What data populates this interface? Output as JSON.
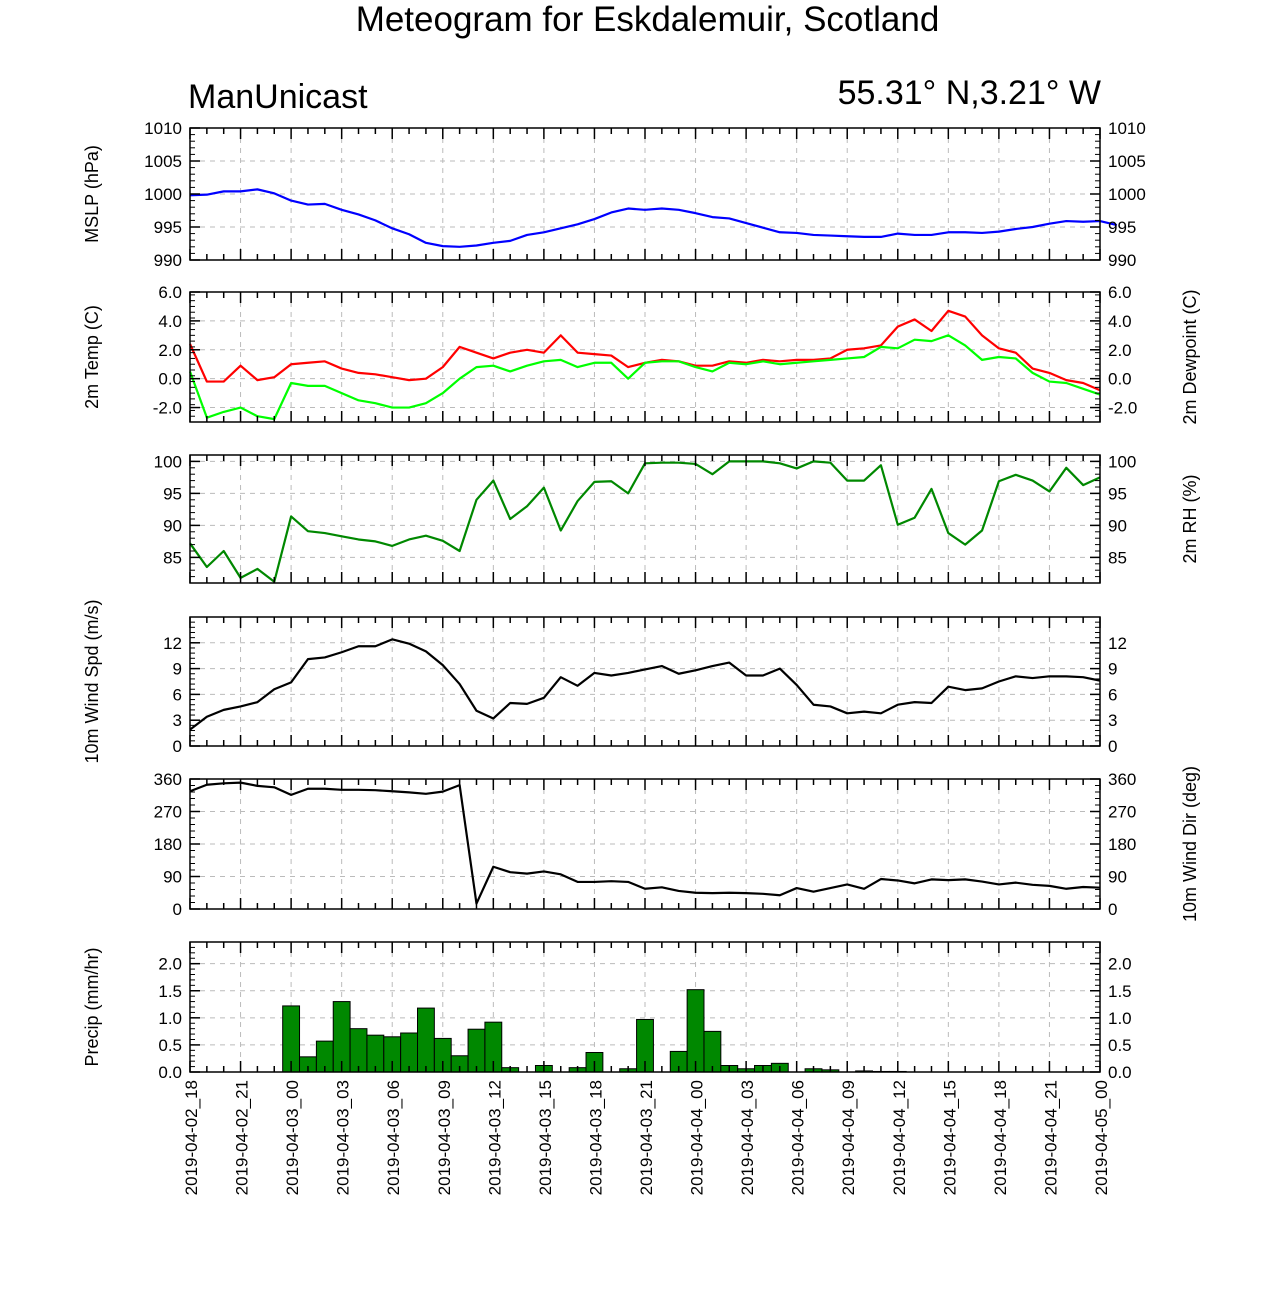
{
  "header": {
    "title": "Meteogram for Eskdalemuir, Scotland",
    "model": "ManUnicast",
    "coords": "55.31° N,3.21° W"
  },
  "chart_data": {
    "type": "line",
    "x_tick_labels": [
      "2019-04-02_18",
      "2019-04-02_21",
      "2019-04-03_00",
      "2019-04-03_03",
      "2019-04-03_06",
      "2019-04-03_09",
      "2019-04-03_12",
      "2019-04-03_15",
      "2019-04-03_18",
      "2019-04-03_21",
      "2019-04-04_00",
      "2019-04-04_03",
      "2019-04-04_06",
      "2019-04-04_09",
      "2019-04-04_12",
      "2019-04-04_15",
      "2019-04-04_18",
      "2019-04-04_21",
      "2019-04-05_00"
    ],
    "x_hours_range": [
      0,
      54
    ],
    "panels": [
      {
        "id": "mslp",
        "ylabel_left": "MSLP (hPa)",
        "ylabel_right": "",
        "ylim": [
          990,
          1010
        ],
        "yticks": [
          990,
          995,
          1000,
          1005,
          1010
        ],
        "ytick_labels": [
          "990",
          "995",
          "1000",
          "1005",
          "1010"
        ],
        "type": "line",
        "series": [
          {
            "color": "#0000ff",
            "values": [
              999.8,
              999.9,
              1000.4,
              1000.4,
              1000.7,
              1000.1,
              999.0,
              998.4,
              998.5,
              997.6,
              996.9,
              996.0,
              994.8,
              993.9,
              992.6,
              992.1,
              992.0,
              992.2,
              992.6,
              992.9,
              993.8,
              994.2,
              994.8,
              995.4,
              996.2,
              997.2,
              997.8,
              997.6,
              997.8,
              997.6,
              997.1,
              996.5,
              996.3,
              995.6,
              994.9,
              994.2,
              994.1,
              993.8,
              993.7,
              993.6,
              993.5,
              993.5,
              994.0,
              993.8,
              993.8,
              994.2,
              994.2,
              994.1,
              994.3,
              994.7,
              995.0,
              995.5,
              995.9,
              995.8,
              995.9,
              995.3
            ]
          }
        ]
      },
      {
        "id": "temp",
        "ylabel_left": "2m Temp (C)",
        "ylabel_right": "2m Dewpoint (C)",
        "ylim": [
          -3,
          6
        ],
        "yticks": [
          -2,
          0,
          2,
          4,
          6
        ],
        "ytick_labels": [
          "-2.0",
          "0.0",
          "2.0",
          "4.0",
          "6.0"
        ],
        "type": "line",
        "series": [
          {
            "color": "#ff0000",
            "values": [
              2.4,
              -0.2,
              -0.2,
              0.9,
              -0.1,
              0.1,
              1.0,
              1.1,
              1.2,
              0.7,
              0.4,
              0.3,
              0.1,
              -0.1,
              0.0,
              0.8,
              2.2,
              1.8,
              1.4,
              1.8,
              2.0,
              1.8,
              3.0,
              1.8,
              1.7,
              1.6,
              0.8,
              1.1,
              1.3,
              1.2,
              0.9,
              0.9,
              1.2,
              1.1,
              1.3,
              1.2,
              1.3,
              1.3,
              1.4,
              2.0,
              2.1,
              2.3,
              3.6,
              4.1,
              3.3,
              4.7,
              4.3,
              3.0,
              2.1,
              1.8,
              0.7,
              0.4,
              -0.1,
              -0.3,
              -0.8
            ]
          },
          {
            "color": "#00ff00",
            "values": [
              0.5,
              -2.7,
              -2.3,
              -2.0,
              -2.6,
              -2.8,
              -0.3,
              -0.5,
              -0.5,
              -1.0,
              -1.5,
              -1.7,
              -2.0,
              -2.0,
              -1.7,
              -1.0,
              0.0,
              0.8,
              0.9,
              0.5,
              0.9,
              1.2,
              1.3,
              0.8,
              1.1,
              1.1,
              0.0,
              1.1,
              1.2,
              1.2,
              0.8,
              0.5,
              1.1,
              1.0,
              1.2,
              1.0,
              1.1,
              1.2,
              1.3,
              1.4,
              1.5,
              2.2,
              2.1,
              2.7,
              2.6,
              3.0,
              2.3,
              1.3,
              1.5,
              1.4,
              0.4,
              -0.2,
              -0.3,
              -0.7,
              -1.1
            ]
          }
        ]
      },
      {
        "id": "rh",
        "ylabel_left": "",
        "ylabel_right": "2m RH (%)",
        "ylim": [
          81,
          101
        ],
        "yticks": [
          85,
          90,
          95,
          100
        ],
        "ytick_labels": [
          "85",
          "90",
          "95",
          "100"
        ],
        "type": "line",
        "series": [
          {
            "color": "#008800",
            "values": [
              87.2,
              83.5,
              86.0,
              81.8,
              83.2,
              81.2,
              91.4,
              89.1,
              88.8,
              88.3,
              87.8,
              87.5,
              86.8,
              87.8,
              88.4,
              87.6,
              86.0,
              94.0,
              97.0,
              91.0,
              93.0,
              95.9,
              89.2,
              93.8,
              96.8,
              96.9,
              95.0,
              99.7,
              99.8,
              99.8,
              99.6,
              98.0,
              100.0,
              100.0,
              100.0,
              99.7,
              98.9,
              100.0,
              99.8,
              97.0,
              97.0,
              99.4,
              90.1,
              91.2,
              95.7,
              88.8,
              87.0,
              89.2,
              96.9,
              97.9,
              97.0,
              95.3,
              99.0,
              96.3,
              97.5
            ]
          }
        ]
      },
      {
        "id": "wspd",
        "ylabel_left": "10m Wind Spd (m/s)",
        "ylabel_right": "",
        "ylim": [
          0,
          15
        ],
        "yticks": [
          0,
          3,
          6,
          9,
          12
        ],
        "ytick_labels": [
          "0",
          "3",
          "6",
          "9",
          "12"
        ],
        "type": "line",
        "series": [
          {
            "color": "#000000",
            "values": [
              1.9,
              3.4,
              4.2,
              4.6,
              5.1,
              6.6,
              7.4,
              10.1,
              10.3,
              10.9,
              11.6,
              11.6,
              12.4,
              11.9,
              11.0,
              9.4,
              7.2,
              4.1,
              3.2,
              5.0,
              4.9,
              5.6,
              8.0,
              7.0,
              8.5,
              8.2,
              8.5,
              8.9,
              9.3,
              8.4,
              8.8,
              9.3,
              9.7,
              8.2,
              8.2,
              9.0,
              7.1,
              4.8,
              4.6,
              3.8,
              4.0,
              3.8,
              4.8,
              5.1,
              5.0,
              6.9,
              6.5,
              6.7,
              7.5,
              8.1,
              7.9,
              8.1,
              8.1,
              8.0,
              7.6
            ]
          }
        ]
      },
      {
        "id": "wdir",
        "ylabel_left": "",
        "ylabel_right": "10m Wind Dir (deg)",
        "ylim": [
          0,
          360
        ],
        "yticks": [
          0,
          90,
          180,
          270,
          360
        ],
        "ytick_labels": [
          "0",
          "90",
          "180",
          "270",
          "360"
        ],
        "type": "line",
        "series": [
          {
            "color": "#000000",
            "values": [
              326,
              344,
              348,
              350,
              341,
              337,
              316,
              333,
              333,
              330,
              330,
              329,
              326,
              323,
              319,
              325,
              343,
              15,
              117,
              102,
              98,
              104,
              96,
              75,
              75,
              77,
              75,
              56,
              60,
              50,
              45,
              44,
              45,
              44,
              42,
              38,
              58,
              48,
              58,
              68,
              56,
              83,
              79,
              71,
              82,
              80,
              82,
              76,
              68,
              73,
              67,
              64,
              56,
              61,
              59
            ]
          }
        ]
      },
      {
        "id": "precip",
        "ylabel_left": "Precip (mm/hr)",
        "ylabel_right": "",
        "ylim": [
          0,
          2.4
        ],
        "yticks": [
          0,
          0.5,
          1.0,
          1.5,
          2.0
        ],
        "ytick_labels": [
          "0.0",
          "0.5",
          "1.0",
          "1.5",
          "2.0"
        ],
        "type": "bar",
        "bar_color": "#008800",
        "values": [
          0,
          0,
          0,
          0,
          0,
          1.22,
          0.28,
          0.57,
          1.3,
          0.8,
          0.68,
          0.65,
          0.72,
          1.18,
          0.62,
          0.3,
          0.79,
          0.92,
          0.08,
          0,
          0.12,
          0,
          0.08,
          0.36,
          0,
          0.06,
          0.97,
          0,
          0.38,
          1.52,
          0.75,
          0.12,
          0.06,
          0.12,
          0.16,
          0,
          0.06,
          0.04,
          0,
          0.02,
          0.01,
          0.01,
          0,
          0,
          0,
          0,
          0,
          0,
          0,
          0,
          0,
          0,
          0,
          0
        ]
      }
    ]
  }
}
